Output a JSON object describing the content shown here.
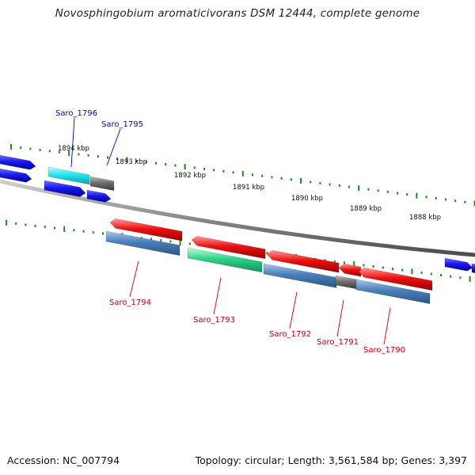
{
  "title": "Novosphingobium aromaticivorans DSM 12444, complete genome",
  "footer": {
    "accession": "Accession: NC_007794",
    "summary": "Topology: circular; Length: 3,561,584 bp; Genes: 3,397"
  },
  "colors": {
    "background": "#ffffff",
    "backbone": "#8a8a8a",
    "tick_green": "#1e8a1e",
    "label_blue": "#0000cc",
    "label_red": "#cc0000",
    "gene_blue": "#1a1aee",
    "gene_cyan": "#22e6f0",
    "gene_gray": "#6e6e6e",
    "gene_red": "#ee1111",
    "gene_steel": "#4a7fb8",
    "gene_green": "#2ed38a"
  },
  "scale_labels": [
    "1894 kbp",
    "1893 kbp",
    "1892 kbp",
    "1891 kbp",
    "1890 kbp",
    "1889 kbp",
    "1888 kbp"
  ],
  "gene_labels": [
    {
      "text": "Saro_1796",
      "color": "blue"
    },
    {
      "text": "Saro_1795",
      "color": "blue"
    },
    {
      "text": "Saro_1794",
      "color": "red"
    },
    {
      "text": "Saro_1793",
      "color": "red"
    },
    {
      "text": "Saro_1792",
      "color": "red"
    },
    {
      "text": "Saro_1791",
      "color": "red"
    },
    {
      "text": "Saro_1790",
      "color": "red"
    }
  ]
}
